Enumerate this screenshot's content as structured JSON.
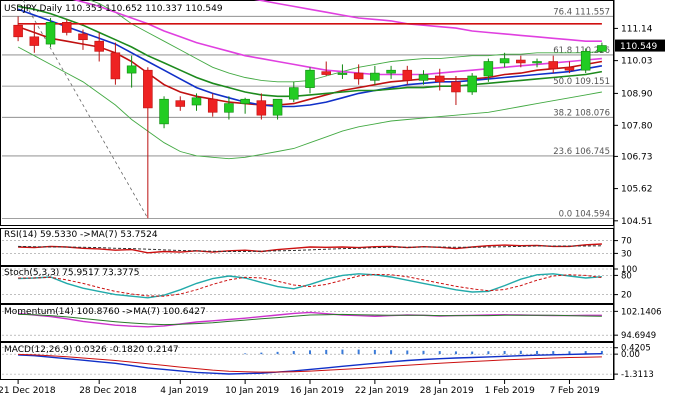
{
  "chart_data": [
    {
      "type": "candlestick",
      "panel": "main",
      "title": "USDJPY,Daily  110.353 110.652 110.337 110.549",
      "current_price": 110.549,
      "y_ticks": [
        111.14,
        110.549,
        110.03,
        108.9,
        107.8,
        106.73,
        105.62,
        104.51
      ],
      "ylim": [
        104.4,
        112.05
      ],
      "x_tick_labels": [
        "21 Dec 2018",
        "28 Dec 2018",
        "4 Jan 2019",
        "10 Jan 2019",
        "16 Jan 2019",
        "22 Jan 2019",
        "28 Jan 2019",
        "1 Feb 2019",
        "7 Feb 2019"
      ],
      "fib_levels": [
        {
          "label": "76.4 111.557",
          "value": 111.557
        },
        {
          "label": "61.8 110.226",
          "value": 110.226
        },
        {
          "label": "50.0 109.151",
          "value": 109.151
        },
        {
          "label": "38.2 108.076",
          "value": 108.076
        },
        {
          "label": "23.6 106.745",
          "value": 106.745
        },
        {
          "label": "0.0 104.594",
          "value": 104.594
        }
      ],
      "candles": [
        {
          "o": 111.25,
          "h": 111.55,
          "l": 110.7,
          "c": 110.85
        },
        {
          "o": 110.85,
          "h": 111.3,
          "l": 110.3,
          "c": 110.55
        },
        {
          "o": 110.6,
          "h": 111.5,
          "l": 110.5,
          "c": 111.35
        },
        {
          "o": 111.35,
          "h": 111.45,
          "l": 110.9,
          "c": 111.0
        },
        {
          "o": 110.95,
          "h": 111.1,
          "l": 110.4,
          "c": 110.75
        },
        {
          "o": 110.7,
          "h": 111.0,
          "l": 110.0,
          "c": 110.35
        },
        {
          "o": 110.3,
          "h": 110.65,
          "l": 109.2,
          "c": 109.4
        },
        {
          "o": 109.6,
          "h": 110.2,
          "l": 109.1,
          "c": 109.85
        },
        {
          "o": 109.7,
          "h": 109.8,
          "l": 104.6,
          "c": 108.4
        },
        {
          "o": 107.85,
          "h": 108.8,
          "l": 107.7,
          "c": 108.7
        },
        {
          "o": 108.65,
          "h": 108.8,
          "l": 108.3,
          "c": 108.45
        },
        {
          "o": 108.5,
          "h": 108.9,
          "l": 108.3,
          "c": 108.75
        },
        {
          "o": 108.7,
          "h": 108.9,
          "l": 108.1,
          "c": 108.25
        },
        {
          "o": 108.25,
          "h": 108.8,
          "l": 108.0,
          "c": 108.55
        },
        {
          "o": 108.55,
          "h": 108.75,
          "l": 108.2,
          "c": 108.7
        },
        {
          "o": 108.65,
          "h": 108.9,
          "l": 108.0,
          "c": 108.15
        },
        {
          "o": 108.15,
          "h": 108.7,
          "l": 108.0,
          "c": 108.7
        },
        {
          "o": 108.7,
          "h": 109.3,
          "l": 108.6,
          "c": 109.1
        },
        {
          "o": 109.1,
          "h": 109.8,
          "l": 108.9,
          "c": 109.7
        },
        {
          "o": 109.65,
          "h": 110.0,
          "l": 109.5,
          "c": 109.55
        },
        {
          "o": 109.55,
          "h": 109.9,
          "l": 109.4,
          "c": 109.6
        },
        {
          "o": 109.6,
          "h": 109.9,
          "l": 109.2,
          "c": 109.4
        },
        {
          "o": 109.35,
          "h": 109.85,
          "l": 109.2,
          "c": 109.6
        },
        {
          "o": 109.6,
          "h": 109.85,
          "l": 109.4,
          "c": 109.7
        },
        {
          "o": 109.7,
          "h": 109.85,
          "l": 109.2,
          "c": 109.35
        },
        {
          "o": 109.35,
          "h": 109.7,
          "l": 109.2,
          "c": 109.55
        },
        {
          "o": 109.5,
          "h": 109.75,
          "l": 109.0,
          "c": 109.3
        },
        {
          "o": 109.3,
          "h": 109.5,
          "l": 108.5,
          "c": 108.95
        },
        {
          "o": 108.95,
          "h": 109.6,
          "l": 108.85,
          "c": 109.5
        },
        {
          "o": 109.5,
          "h": 110.1,
          "l": 109.3,
          "c": 110.0
        },
        {
          "o": 109.95,
          "h": 110.3,
          "l": 109.8,
          "c": 110.1
        },
        {
          "o": 110.05,
          "h": 110.2,
          "l": 109.8,
          "c": 109.95
        },
        {
          "o": 109.95,
          "h": 110.1,
          "l": 109.8,
          "c": 110.0
        },
        {
          "o": 110.0,
          "h": 110.2,
          "l": 109.6,
          "c": 109.75
        },
        {
          "o": 109.8,
          "h": 110.0,
          "l": 109.6,
          "c": 109.7
        },
        {
          "o": 109.7,
          "h": 110.45,
          "l": 109.6,
          "c": 110.35
        },
        {
          "o": 110.35,
          "h": 110.65,
          "l": 110.3,
          "c": 110.55
        }
      ],
      "overlays": [
        {
          "name": "ma-red",
          "color": "#c01010",
          "values": [
            111.2,
            111.0,
            110.8,
            110.7,
            110.6,
            110.5,
            110.3,
            110.0,
            109.6,
            109.2,
            108.95,
            108.8,
            108.7,
            108.6,
            108.55,
            108.5,
            108.5,
            108.55,
            108.7,
            108.85,
            109.0,
            109.1,
            109.2,
            109.3,
            109.35,
            109.4,
            109.4,
            109.4,
            109.4,
            109.45,
            109.55,
            109.6,
            109.7,
            109.75,
            109.8,
            109.9,
            110.0
          ]
        },
        {
          "name": "ma-blue",
          "color": "#1030c8",
          "values": [
            111.8,
            111.6,
            111.4,
            111.2,
            111.0,
            110.8,
            110.6,
            110.3,
            110.0,
            109.7,
            109.4,
            109.1,
            108.9,
            108.75,
            108.6,
            108.5,
            108.45,
            108.45,
            108.5,
            108.6,
            108.75,
            108.9,
            109.0,
            109.1,
            109.2,
            109.25,
            109.3,
            109.3,
            109.35,
            109.4,
            109.45,
            109.5,
            109.55,
            109.6,
            109.65,
            109.75,
            109.85
          ]
        },
        {
          "name": "ma-green",
          "color": "#1d8a1d",
          "values": [
            111.9,
            111.8,
            111.65,
            111.45,
            111.25,
            111.0,
            110.75,
            110.5,
            110.2,
            109.95,
            109.7,
            109.45,
            109.25,
            109.1,
            108.95,
            108.85,
            108.8,
            108.8,
            108.85,
            108.9,
            108.95,
            109.0,
            109.0,
            109.05,
            109.1,
            109.1,
            109.15,
            109.15,
            109.2,
            109.25,
            109.3,
            109.35,
            109.4,
            109.45,
            109.5,
            109.55,
            109.65
          ]
        },
        {
          "name": "bollinger-upper",
          "color": "#44aa44",
          "values": [
            112.8,
            112.7,
            112.6,
            112.4,
            112.2,
            112.0,
            111.7,
            111.3,
            111.0,
            110.7,
            110.4,
            110.1,
            109.8,
            109.6,
            109.45,
            109.35,
            109.3,
            109.3,
            109.35,
            109.5,
            109.65,
            109.8,
            109.9,
            110.0,
            110.05,
            110.1,
            110.1,
            110.15,
            110.2,
            110.2,
            110.25,
            110.25,
            110.3,
            110.3,
            110.3,
            110.3,
            110.35
          ]
        },
        {
          "name": "bollinger-lower",
          "color": "#44aa44",
          "values": [
            110.5,
            110.2,
            109.9,
            109.6,
            109.3,
            108.9,
            108.5,
            108.0,
            107.6,
            107.2,
            106.9,
            106.75,
            106.7,
            106.65,
            106.7,
            106.8,
            106.9,
            107.0,
            107.2,
            107.4,
            107.6,
            107.75,
            107.85,
            107.95,
            108.0,
            108.05,
            108.1,
            108.15,
            108.2,
            108.25,
            108.35,
            108.45,
            108.55,
            108.65,
            108.75,
            108.85,
            108.95
          ]
        },
        {
          "name": "ma-magenta",
          "color": "#e040e0",
          "values": [
            112.4,
            112.35,
            112.3,
            112.2,
            112.05,
            111.9,
            111.7,
            111.5,
            111.3,
            111.05,
            110.85,
            110.65,
            110.5,
            110.35,
            110.2,
            110.1,
            110.0,
            109.9,
            109.8,
            109.7,
            109.65,
            109.6,
            109.55,
            109.55,
            109.55,
            109.55,
            109.6,
            109.65,
            109.7,
            109.75,
            109.8,
            109.85,
            109.9,
            109.95,
            110.0,
            110.05,
            110.1
          ]
        },
        {
          "name": "ma-magenta-high",
          "color": "#e040e0",
          "values": [
            113.6,
            113.5,
            113.4,
            113.3,
            113.2,
            113.1,
            113.0,
            112.9,
            112.8,
            112.7,
            112.6,
            112.5,
            112.4,
            112.3,
            112.2,
            112.1,
            112.0,
            111.9,
            111.8,
            111.7,
            111.6,
            111.5,
            111.45,
            111.4,
            111.3,
            111.25,
            111.2,
            111.15,
            111.05,
            111.0,
            110.95,
            110.9,
            110.85,
            110.8,
            110.75,
            110.7,
            110.7
          ]
        },
        {
          "name": "ma-red-200",
          "color": "#d01010",
          "values": [
            111.3,
            111.3,
            111.3,
            111.3,
            111.3,
            111.3,
            111.3,
            111.3,
            111.3,
            111.3,
            111.3,
            111.3,
            111.3,
            111.3,
            111.3,
            111.3,
            111.3,
            111.3,
            111.3,
            111.3,
            111.3,
            111.3,
            111.3,
            111.3,
            111.3,
            111.3,
            111.3,
            111.3,
            111.3,
            111.3,
            111.3,
            111.3,
            111.3,
            111.3,
            111.3,
            111.3,
            111.3
          ]
        }
      ]
    },
    {
      "type": "line",
      "panel": "rsi",
      "title": "RSI(14) 59.5330  ->MA(7) 53.7524",
      "y_ticks": [
        "70",
        "30"
      ],
      "ylim": [
        0,
        100
      ],
      "series": [
        {
          "name": "RSI",
          "color": "#cc1010",
          "values": [
            50,
            48,
            52,
            50,
            46,
            44,
            40,
            42,
            32,
            36,
            34,
            38,
            34,
            38,
            40,
            36,
            42,
            46,
            50,
            49,
            50,
            48,
            51,
            52,
            48,
            51,
            49,
            45,
            50,
            54,
            56,
            54,
            55,
            52,
            52,
            57,
            59.5
          ]
        },
        {
          "name": "MA",
          "color": "#333333",
          "values": [
            52,
            51,
            50,
            50,
            49,
            48,
            46,
            45,
            43,
            41,
            39,
            38,
            37,
            36,
            36,
            37,
            38,
            39,
            41,
            43,
            45,
            46,
            48,
            49,
            49,
            50,
            50,
            49,
            49,
            50,
            51,
            52,
            53,
            53,
            53,
            53,
            53.8
          ]
        }
      ]
    },
    {
      "type": "line",
      "panel": "stoch",
      "title": "Stoch(5,3,3) 75.9517 73.3775",
      "y_ticks": [
        "100",
        "80",
        "20"
      ],
      "ylim": [
        0,
        100
      ],
      "series": [
        {
          "name": "%K",
          "color": "#22aaaa",
          "values": [
            70,
            72,
            75,
            55,
            40,
            30,
            20,
            15,
            10,
            18,
            35,
            55,
            70,
            78,
            72,
            58,
            45,
            38,
            52,
            68,
            80,
            85,
            82,
            75,
            65,
            55,
            45,
            35,
            28,
            30,
            48,
            68,
            82,
            85,
            78,
            72,
            76
          ]
        },
        {
          "name": "%D",
          "color": "#cc1010",
          "values": [
            72,
            72,
            74,
            66,
            55,
            42,
            30,
            22,
            16,
            15,
            22,
            35,
            52,
            66,
            74,
            72,
            62,
            50,
            45,
            52,
            65,
            78,
            83,
            82,
            76,
            66,
            56,
            46,
            38,
            32,
            36,
            48,
            65,
            78,
            82,
            80,
            73
          ]
        }
      ]
    },
    {
      "type": "line",
      "panel": "momentum",
      "title": "Momentum(14) 100.8760  ->MA(7) 100.6427",
      "y_ticks": [
        "102.1406",
        "94.6949"
      ],
      "ylim": [
        93.5,
        103.5
      ],
      "series": [
        {
          "name": "Momentum",
          "color": "#cc33cc",
          "values": [
            101.5,
            101.0,
            100.5,
            99.8,
            99.0,
            98.4,
            97.8,
            97.5,
            97.3,
            97.6,
            98.2,
            98.8,
            99.2,
            99.6,
            100.0,
            100.5,
            101.0,
            101.5,
            101.8,
            101.4,
            101.0,
            100.8,
            100.6,
            100.8,
            101.0,
            100.9,
            100.7,
            100.8,
            100.9,
            101.0,
            101.1,
            101.0,
            100.9,
            100.8,
            100.8,
            100.9,
            100.9
          ]
        },
        {
          "name": "MA",
          "color": "#2a7a2a",
          "values": [
            101.2,
            101.1,
            100.8,
            100.4,
            99.9,
            99.4,
            98.9,
            98.5,
            98.2,
            98.0,
            98.1,
            98.3,
            98.6,
            99.0,
            99.4,
            99.8,
            100.2,
            100.6,
            101.0,
            101.1,
            101.2,
            101.1,
            101.0,
            100.9,
            100.9,
            100.9,
            100.8,
            100.8,
            100.8,
            100.8,
            100.9,
            100.9,
            100.9,
            100.9,
            100.8,
            100.7,
            100.6
          ]
        }
      ]
    },
    {
      "type": "bar",
      "panel": "macd",
      "title": "MACD(12,26,9) 0.0326  -0.1820  0.2147",
      "y_ticks": [
        "0.4205",
        "0.00",
        "-1.3113"
      ],
      "ylim": [
        -1.5,
        0.6
      ],
      "histogram": [
        0.0,
        0.0,
        0.0,
        0.0,
        0.0,
        0.0,
        0.0,
        0.0,
        0.0,
        0.0,
        0.0,
        0.0,
        0.0,
        0.0,
        0.05,
        0.1,
        0.15,
        0.2,
        0.25,
        0.28,
        0.3,
        0.3,
        0.28,
        0.26,
        0.24,
        0.22,
        0.2,
        0.18,
        0.17,
        0.19,
        0.21,
        0.22,
        0.21,
        0.2,
        0.19,
        0.2,
        0.21
      ],
      "series": [
        {
          "name": "MACD",
          "color": "#1030c8",
          "values": [
            -0.05,
            -0.1,
            -0.2,
            -0.3,
            -0.4,
            -0.5,
            -0.6,
            -0.75,
            -0.9,
            -1.0,
            -1.1,
            -1.2,
            -1.25,
            -1.3,
            -1.28,
            -1.25,
            -1.18,
            -1.1,
            -1.0,
            -0.9,
            -0.8,
            -0.7,
            -0.6,
            -0.5,
            -0.42,
            -0.35,
            -0.3,
            -0.25,
            -0.22,
            -0.18,
            -0.14,
            -0.1,
            -0.07,
            -0.04,
            -0.02,
            0.01,
            0.03
          ]
        },
        {
          "name": "Signal",
          "color": "#cc1010",
          "values": [
            -0.02,
            -0.05,
            -0.1,
            -0.17,
            -0.25,
            -0.33,
            -0.42,
            -0.52,
            -0.63,
            -0.74,
            -0.85,
            -0.95,
            -1.05,
            -1.12,
            -1.16,
            -1.18,
            -1.17,
            -1.15,
            -1.11,
            -1.06,
            -1.0,
            -0.94,
            -0.87,
            -0.8,
            -0.73,
            -0.66,
            -0.6,
            -0.54,
            -0.48,
            -0.43,
            -0.38,
            -0.33,
            -0.29,
            -0.25,
            -0.22,
            -0.2,
            -0.18
          ]
        }
      ]
    }
  ],
  "colors": {
    "bull": "#22cc22",
    "bear": "#ee2222",
    "price_tag_bg": "#000000",
    "price_tag_fg": "#ffffff",
    "grid": "#000000",
    "label_gray": "#555555"
  }
}
